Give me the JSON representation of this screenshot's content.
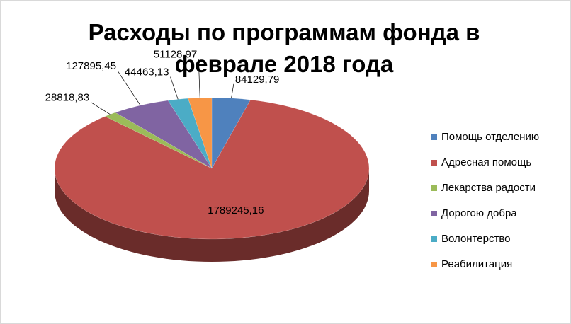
{
  "chart_data": {
    "type": "pie",
    "title": "Расходы по программам фонда в феврале 2018 года",
    "categories": [
      "Помощь отделению",
      "Адресная помощь",
      "Лекарства радости",
      "Дорогою добра",
      "Волонтерство",
      "Реабилитация"
    ],
    "values": [
      84129.79,
      1789245.16,
      28818.83,
      127895.45,
      44463.13,
      51128.97
    ],
    "value_labels": [
      "84129,79",
      "1789245,16",
      "28818,83",
      "127895,45",
      "44463,13",
      "51128,97"
    ],
    "colors": [
      "#4f81bd",
      "#c0504d",
      "#9bbb59",
      "#8064a2",
      "#4bacc6",
      "#f79646"
    ],
    "legend": "right"
  }
}
